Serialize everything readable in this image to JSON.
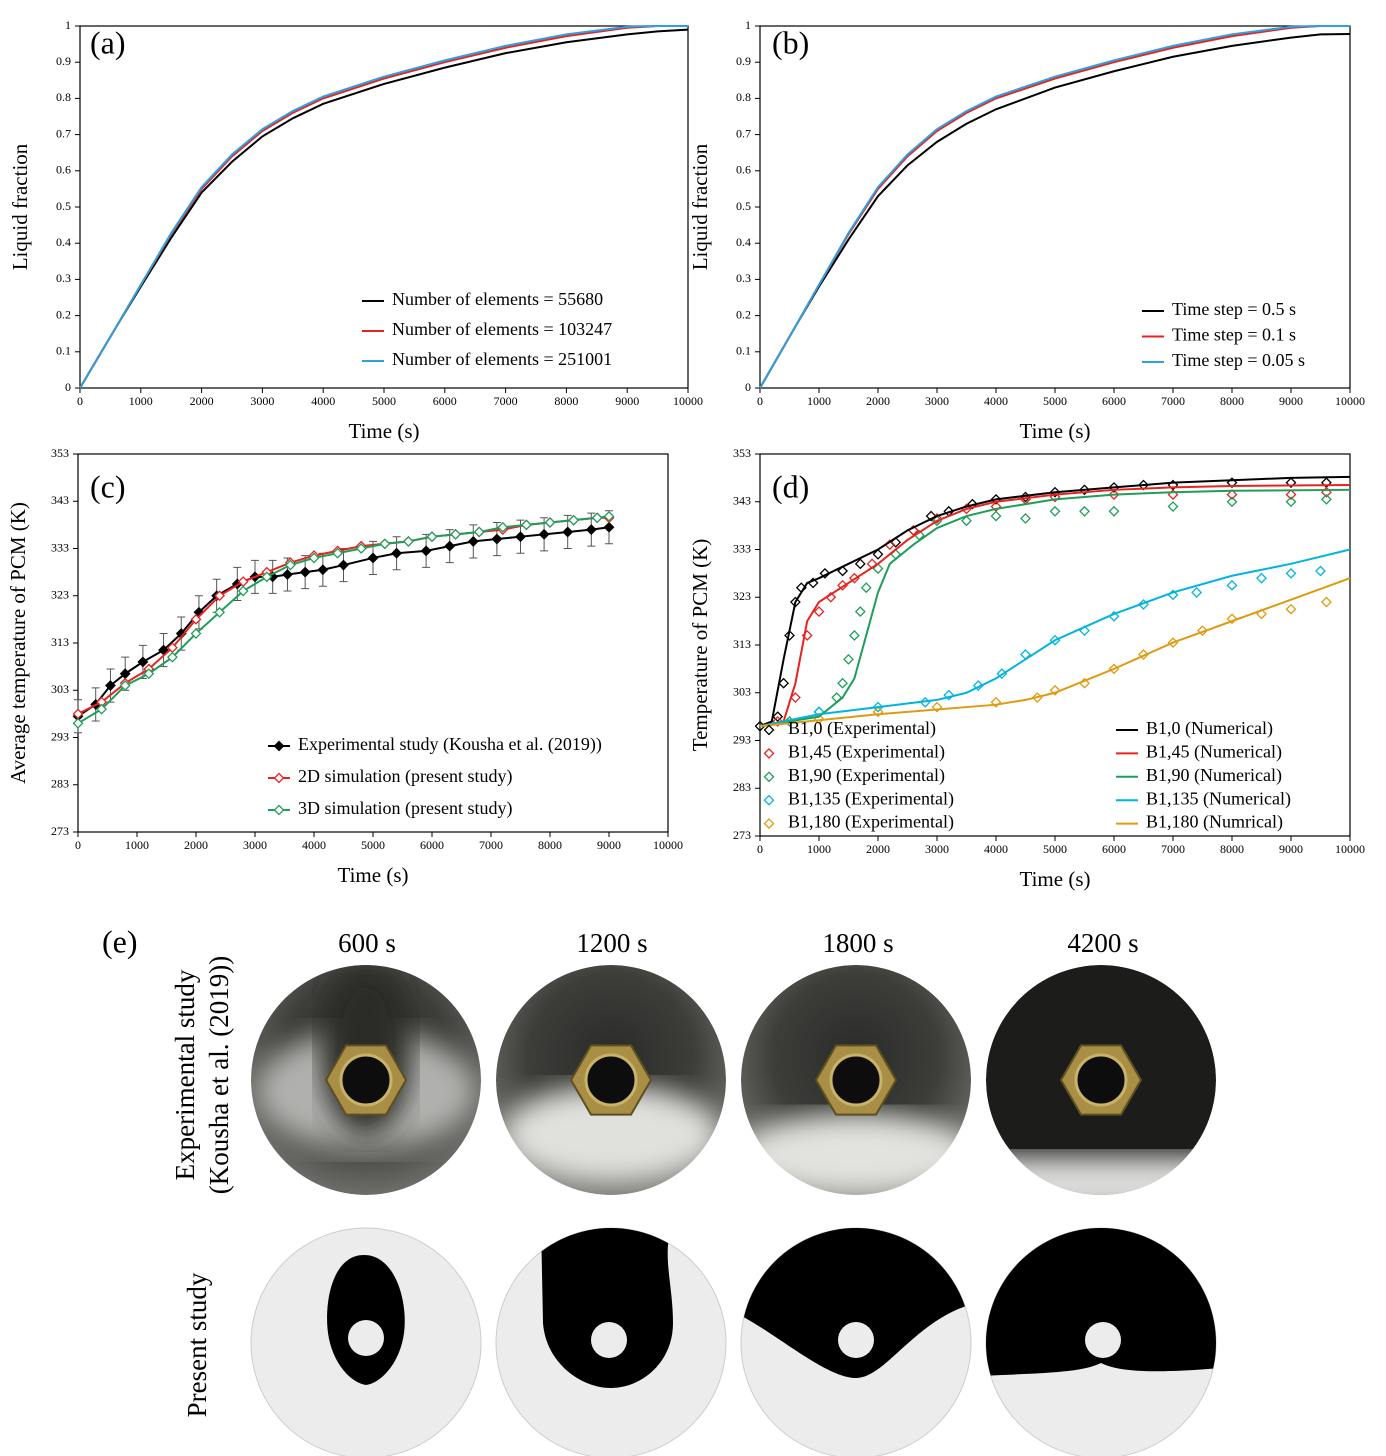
{
  "chart_data": [
    {
      "type": "line",
      "panel_label": "(a)",
      "xlabel": "Time (s)",
      "ylabel": "Liquid fraction",
      "xlim": [
        0,
        10000
      ],
      "xticks": [
        0,
        1000,
        2000,
        3000,
        4000,
        5000,
        6000,
        7000,
        8000,
        9000,
        10000
      ],
      "ylim": [
        0,
        1
      ],
      "yticks": [
        0,
        0.1,
        0.2,
        0.3,
        0.4,
        0.5,
        0.6,
        0.7,
        0.8,
        0.9,
        1
      ],
      "legend": "lower right",
      "x": [
        0,
        300,
        600,
        1000,
        1500,
        2000,
        2500,
        3000,
        3500,
        4000,
        5000,
        6000,
        7000,
        8000,
        9000,
        9500,
        10000
      ],
      "series": [
        {
          "name": "Number of elements = 55680",
          "color": "#000000",
          "style": "line",
          "values": [
            0,
            0.085,
            0.17,
            0.28,
            0.415,
            0.54,
            0.625,
            0.695,
            0.745,
            0.785,
            0.84,
            0.885,
            0.925,
            0.955,
            0.977,
            0.985,
            0.99
          ]
        },
        {
          "name": "Number of elements = 103247",
          "color": "#e8231f",
          "style": "line",
          "values": [
            0,
            0.085,
            0.17,
            0.285,
            0.425,
            0.55,
            0.64,
            0.71,
            0.76,
            0.8,
            0.855,
            0.9,
            0.94,
            0.972,
            0.995,
            1,
            1
          ]
        },
        {
          "name": "Number of elements = 251001",
          "color": "#2f9fe0",
          "style": "line",
          "values": [
            0,
            0.085,
            0.17,
            0.285,
            0.428,
            0.555,
            0.645,
            0.715,
            0.765,
            0.805,
            0.86,
            0.905,
            0.945,
            0.977,
            0.998,
            1,
            1
          ]
        }
      ]
    },
    {
      "type": "line",
      "panel_label": "(b)",
      "xlabel": "Time (s)",
      "ylabel": "Liquid fraction",
      "xlim": [
        0,
        10000
      ],
      "xticks": [
        0,
        1000,
        2000,
        3000,
        4000,
        5000,
        6000,
        7000,
        8000,
        9000,
        10000
      ],
      "ylim": [
        0,
        1
      ],
      "yticks": [
        0,
        0.1,
        0.2,
        0.3,
        0.4,
        0.5,
        0.6,
        0.7,
        0.8,
        0.9,
        1
      ],
      "legend": "lower right",
      "x": [
        0,
        300,
        600,
        1000,
        1500,
        2000,
        2500,
        3000,
        3500,
        4000,
        5000,
        6000,
        7000,
        8000,
        9000,
        9500,
        10000
      ],
      "series": [
        {
          "name": "Time step = 0.5 s",
          "color": "#000000",
          "style": "line",
          "values": [
            0,
            0.085,
            0.17,
            0.28,
            0.41,
            0.53,
            0.615,
            0.68,
            0.73,
            0.77,
            0.83,
            0.875,
            0.915,
            0.945,
            0.968,
            0.977,
            0.978
          ]
        },
        {
          "name": "Time step = 0.1 s",
          "color": "#e8231f",
          "style": "line",
          "values": [
            0,
            0.085,
            0.17,
            0.285,
            0.425,
            0.55,
            0.64,
            0.71,
            0.76,
            0.8,
            0.855,
            0.9,
            0.94,
            0.972,
            0.995,
            1,
            1
          ]
        },
        {
          "name": "Time step = 0.05 s",
          "color": "#2f9fe0",
          "style": "line",
          "values": [
            0,
            0.085,
            0.17,
            0.285,
            0.428,
            0.555,
            0.645,
            0.715,
            0.765,
            0.805,
            0.86,
            0.905,
            0.945,
            0.977,
            0.998,
            1,
            1
          ]
        }
      ]
    },
    {
      "type": "line",
      "panel_label": "(c)",
      "xlabel": "Time (s)",
      "ylabel": "Average temperature of PCM (K)",
      "xlim": [
        0,
        10000
      ],
      "xticks": [
        0,
        1000,
        2000,
        3000,
        4000,
        5000,
        6000,
        7000,
        8000,
        9000,
        10000
      ],
      "ylim": [
        273,
        353
      ],
      "yticks": [
        273,
        283,
        293,
        303,
        313,
        323,
        333,
        343,
        353
      ],
      "legend": "lower right",
      "series": [
        {
          "name": "Experimental study (Kousha et al. (2019))",
          "color": "#000000",
          "style": "line-markers",
          "marker_fill": "#000000",
          "x": [
            0,
            300,
            550,
            800,
            1100,
            1450,
            1750,
            2050,
            2350,
            2700,
            3000,
            3300,
            3550,
            3850,
            4150,
            4500,
            5000,
            5400,
            5900,
            6300,
            6700,
            7100,
            7500,
            7900,
            8300,
            8700,
            9000
          ],
          "values": [
            297.5,
            300,
            304,
            306.5,
            309,
            311.5,
            315,
            319.5,
            323,
            325.5,
            327,
            327,
            327.5,
            328,
            328.5,
            329.5,
            331,
            332,
            332.5,
            333.5,
            334.5,
            335,
            335.5,
            336,
            336.5,
            337,
            337.5
          ],
          "errors": [
            3.5,
            3.5,
            3.5,
            3.5,
            3.5,
            3.5,
            3.5,
            3.5,
            3.5,
            3.5,
            3.5,
            3.5,
            3.5,
            3.5,
            3.5,
            3.5,
            3.5,
            3.5,
            3.5,
            3.5,
            3.5,
            3.5,
            3.5,
            3.5,
            3.5,
            3.5,
            3.5
          ]
        },
        {
          "name": "2D simulation (present study)",
          "color": "#e8231f",
          "style": "line-markers",
          "marker_fill": "#ffffff",
          "x": [
            0,
            400,
            800,
            1200,
            1600,
            2000,
            2400,
            2800,
            3200,
            3600,
            4000,
            4400,
            4800,
            5200,
            5600,
            6000,
            6400,
            6800,
            7200,
            7600,
            8000,
            8400,
            8800,
            9000
          ],
          "values": [
            298,
            300.5,
            304.5,
            307.5,
            312,
            318,
            323,
            326,
            328,
            330,
            331.5,
            332.5,
            333.5,
            334,
            334.5,
            335.5,
            336,
            336.5,
            337,
            338,
            338.5,
            339,
            339.5,
            339.5
          ]
        },
        {
          "name": "3D simulation (present study)",
          "color": "#1f9e5a",
          "style": "line-markers",
          "marker_fill": "#ffffff",
          "x": [
            0,
            400,
            800,
            1200,
            1600,
            2000,
            2400,
            2800,
            3200,
            3600,
            4000,
            4400,
            4800,
            5200,
            5600,
            6000,
            6400,
            6800,
            7200,
            7600,
            8000,
            8400,
            8800,
            9000
          ],
          "values": [
            296,
            299,
            304,
            306.5,
            310,
            315,
            319.5,
            324,
            327,
            329.5,
            331,
            332,
            333,
            334,
            334.5,
            335.5,
            336,
            336.5,
            337.5,
            338,
            338.5,
            339,
            339.5,
            339.8
          ]
        }
      ]
    },
    {
      "type": "line",
      "panel_label": "(d)",
      "xlabel": "Time (s)",
      "ylabel": "Temperature of PCM (K)",
      "xlim": [
        0,
        10000
      ],
      "xticks": [
        0,
        1000,
        2000,
        3000,
        4000,
        5000,
        6000,
        7000,
        8000,
        9000,
        10000
      ],
      "ylim": [
        273,
        353
      ],
      "yticks": [
        273,
        283,
        293,
        303,
        313,
        323,
        333,
        343,
        353
      ],
      "legend": "lower right",
      "series": [
        {
          "name": "B1,0 (Experimental)",
          "color": "#000000",
          "style": "markers",
          "x": [
            0,
            300,
            400,
            500,
            600,
            700,
            900,
            1100,
            1400,
            1700,
            2000,
            2300,
            2600,
            2900,
            3200,
            3600,
            4000,
            4500,
            5000,
            5500,
            6000,
            6500,
            7000,
            8000,
            9000,
            9600
          ],
          "values": [
            296,
            298,
            305,
            315,
            322,
            325,
            326,
            328,
            328.5,
            330,
            332,
            334.5,
            337,
            340,
            341,
            342.5,
            343.5,
            344,
            345,
            345.5,
            346,
            346.5,
            346.5,
            347,
            347,
            347
          ]
        },
        {
          "name": "B1,45 (Experimental)",
          "color": "#e8231f",
          "style": "markers",
          "x": [
            300,
            600,
            800,
            1000,
            1200,
            1400,
            1600,
            1900,
            2200,
            2600,
            3000,
            3500,
            4000,
            4500,
            5000,
            6000,
            7000,
            8000,
            9000,
            9600
          ],
          "values": [
            297,
            302,
            315,
            320,
            323,
            325.5,
            327,
            330,
            334,
            337,
            339.5,
            341.5,
            342,
            343.5,
            344,
            344.5,
            344.5,
            344.5,
            344.5,
            345
          ]
        },
        {
          "name": "B1,90 (Experimental)",
          "color": "#1f9e5a",
          "style": "markers",
          "x": [
            500,
            1000,
            1300,
            1400,
            1500,
            1600,
            1700,
            1800,
            2000,
            2300,
            2700,
            3000,
            3500,
            4000,
            4500,
            5000,
            5500,
            6000,
            7000,
            8000,
            9000,
            9600
          ],
          "values": [
            297,
            299,
            302,
            305,
            310,
            315,
            320,
            325,
            329,
            332,
            336,
            339,
            339,
            340,
            339.5,
            341,
            341,
            341,
            342,
            343,
            343,
            343.5
          ]
        },
        {
          "name": "B1,135 (Experimental)",
          "color": "#00b4e0",
          "style": "markers",
          "x": [
            1000,
            2000,
            2800,
            3200,
            3700,
            4100,
            4500,
            5000,
            5500,
            6000,
            6500,
            7000,
            7400,
            8000,
            8500,
            9000,
            9500
          ],
          "values": [
            299,
            300,
            301,
            302.5,
            304.5,
            307,
            311,
            314,
            316,
            319,
            321.5,
            323.5,
            324,
            325.5,
            327,
            328,
            328.5
          ]
        },
        {
          "name": "B1,180 (Experimental)",
          "color": "#e09a10",
          "style": "markers",
          "x": [
            1000,
            2000,
            3000,
            4000,
            4700,
            5000,
            5500,
            6000,
            6500,
            7000,
            7500,
            8000,
            8500,
            9000,
            9600
          ],
          "values": [
            297.5,
            299,
            300,
            301,
            302,
            303.5,
            305,
            308,
            311,
            313.5,
            316,
            318.5,
            319.5,
            320.5,
            322
          ]
        },
        {
          "name": "B1,0 (Numerical)",
          "color": "#000000",
          "style": "line",
          "x": [
            0,
            200,
            400,
            600,
            800,
            1000,
            1500,
            2000,
            2500,
            3000,
            3500,
            4000,
            5000,
            6000,
            7000,
            8000,
            9000,
            10000
          ],
          "values": [
            296,
            297,
            310,
            322,
            326,
            327,
            330,
            333,
            337,
            340,
            342,
            343.5,
            345,
            346,
            347,
            347.5,
            348,
            348.2
          ]
        },
        {
          "name": "B1,45 (Numerical)",
          "color": "#e8231f",
          "style": "line",
          "x": [
            0,
            400,
            600,
            800,
            1000,
            1500,
            2000,
            2500,
            3000,
            3500,
            4000,
            5000,
            6000,
            7000,
            8000,
            10000
          ],
          "values": [
            296,
            297,
            305,
            318,
            322,
            326,
            330,
            335,
            339,
            341.5,
            343,
            344.5,
            345.5,
            346,
            346.3,
            346.5
          ]
        },
        {
          "name": "B1,90 (Numerical)",
          "color": "#1f9e5a",
          "style": "line",
          "x": [
            0,
            1000,
            1400,
            1600,
            1800,
            2000,
            2200,
            2600,
            3000,
            3500,
            4000,
            5000,
            6000,
            7000,
            8000,
            10000
          ],
          "values": [
            296,
            298,
            302,
            306,
            315,
            324,
            330,
            334,
            337.5,
            340,
            341.5,
            343.5,
            344.5,
            345,
            345.3,
            345.5
          ]
        },
        {
          "name": "B1,135 (Numerical)",
          "color": "#00b4e0",
          "style": "line",
          "x": [
            0,
            1000,
            2000,
            3000,
            3500,
            4000,
            4500,
            5000,
            6000,
            7000,
            8000,
            9000,
            10000
          ],
          "values": [
            296,
            298.5,
            300,
            301.5,
            303,
            306,
            310,
            314,
            319.5,
            324,
            327.5,
            330,
            333
          ]
        },
        {
          "name": "B1,180 (Numrical)",
          "color": "#e09a10",
          "style": "line",
          "x": [
            0,
            2000,
            4000,
            4500,
            5000,
            5500,
            6000,
            7000,
            8000,
            9000,
            10000
          ],
          "values": [
            296,
            298.5,
            300.5,
            301.5,
            303,
            305.5,
            308,
            313.5,
            318,
            322.5,
            327
          ]
        }
      ]
    }
  ],
  "panel_e": {
    "label": "(e)",
    "times": [
      "600 s",
      "1200 s",
      "1800 s",
      "4200 s"
    ],
    "rows": [
      {
        "label": [
          "Experimental study",
          "(Kousha et al. (2019))"
        ]
      },
      {
        "label": [
          "Present study"
        ]
      }
    ]
  }
}
